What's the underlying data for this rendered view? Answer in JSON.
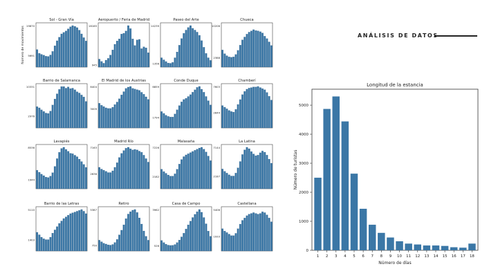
{
  "header": {
    "title": "ANÁLISIS DE DATOS"
  },
  "colors": {
    "bar": "#3b77a6",
    "bar_edge": "#2a5b82",
    "accent": "#222222"
  },
  "chart_data": [
    {
      "type": "bar",
      "title": "Longitud de la estancia",
      "xlabel": "Número de días",
      "ylabel": "Número de turistas",
      "categories": [
        "1",
        "2",
        "3",
        "4",
        "5",
        "6",
        "7",
        "8",
        "9",
        "10",
        "11",
        "12",
        "13",
        "14",
        "15",
        "16",
        "17",
        "18"
      ],
      "values": [
        2500,
        4870,
        5300,
        4440,
        2640,
        1430,
        880,
        600,
        440,
        310,
        230,
        200,
        165,
        165,
        150,
        105,
        90,
        230
      ],
      "ylim": [
        0,
        5550
      ],
      "yticks": [
        "0",
        "1000",
        "2000",
        "3000",
        "4000",
        "5000"
      ]
    },
    {
      "type": "bar",
      "ylabel": "Número de movimientos",
      "panels": [
        {
          "title": "Sol - Gran Vía",
          "ylim_labels": [
            "",
            "5691",
            "19870"
          ],
          "min": 0,
          "max": 19870,
          "mid": 5691,
          "values": [
            8400,
            6600,
            6100,
            5700,
            5200,
            5100,
            5800,
            7500,
            10200,
            12600,
            14300,
            15900,
            16600,
            17300,
            18300,
            19300,
            19870,
            19500,
            18900,
            17700,
            15900,
            14100,
            12500
          ]
        },
        {
          "title": "Aeropuerto / Feria de Madrid",
          "ylim_labels": [
            "",
            "945",
            "16185"
          ],
          "min": 0,
          "max": 16185,
          "mid": 945,
          "values": [
            3100,
            2200,
            1500,
            2700,
            3400,
            4700,
            6700,
            8900,
            10200,
            11000,
            12900,
            13200,
            14100,
            16185,
            15000,
            11000,
            8400,
            10600,
            10800,
            7200,
            7900,
            7500,
            5600
          ]
        },
        {
          "title": "Paseo del Arte",
          "ylim_labels": [
            "",
            "1356",
            "14239"
          ],
          "min": 0,
          "max": 14239,
          "mid": 1356,
          "values": [
            3200,
            2500,
            1900,
            1400,
            1300,
            1600,
            3200,
            5200,
            7500,
            9800,
            11600,
            12700,
            13600,
            14239,
            13300,
            12700,
            12000,
            10900,
            9100,
            6800,
            4700,
            3200,
            2300
          ]
        },
        {
          "title": "Chueca",
          "ylim_labels": [
            "",
            "2388",
            "10206"
          ],
          "min": 0,
          "max": 10206,
          "mid": 2388,
          "values": [
            4200,
            3300,
            2800,
            2500,
            2400,
            2500,
            3100,
            4100,
            5400,
            6700,
            7400,
            8100,
            8600,
            8900,
            9200,
            9000,
            8900,
            8700,
            8400,
            7600,
            7000,
            6200,
            5300
          ]
        },
        {
          "title": "Barrio de Salamanca",
          "ylim_labels": [
            "",
            "2976",
            "10331"
          ],
          "min": 0,
          "max": 10331,
          "mid": 2976,
          "values": [
            5300,
            5000,
            4500,
            4100,
            3700,
            3600,
            4200,
            5700,
            7200,
            8500,
            9600,
            10300,
            10300,
            9900,
            10200,
            9800,
            9900,
            9500,
            9000,
            8700,
            8200,
            7700,
            6600
          ]
        },
        {
          "title": "El Madrid de los Austrias",
          "ylim_labels": [
            "",
            "3009",
            "6404"
          ],
          "min": 0,
          "max": 6404,
          "mid": 3009,
          "values": [
            3800,
            3500,
            3300,
            3100,
            3000,
            3000,
            3200,
            3600,
            4000,
            4500,
            5100,
            5600,
            6100,
            6300,
            6400,
            6100,
            6000,
            5900,
            5800,
            5500,
            5200,
            4800,
            4400
          ]
        },
        {
          "title": "Conde Duque",
          "ylim_labels": [
            "",
            "1794",
            "6859"
          ],
          "min": 0,
          "max": 6859,
          "mid": 1794,
          "values": [
            2700,
            2400,
            2100,
            1900,
            1800,
            1800,
            2300,
            3000,
            3700,
            4300,
            4700,
            4900,
            5200,
            5500,
            5900,
            6300,
            6700,
            6859,
            6400,
            5900,
            5200,
            4500,
            3800
          ]
        },
        {
          "title": "Chamberí",
          "ylim_labels": [
            "",
            "2844",
            "7603"
          ],
          "min": 0,
          "max": 7603,
          "mid": 2844,
          "values": [
            4100,
            3800,
            3500,
            3200,
            3000,
            2900,
            3400,
            4300,
            5200,
            6100,
            6700,
            7100,
            7300,
            7400,
            7500,
            7500,
            7600,
            7400,
            7200,
            7000,
            6500,
            5800,
            5100
          ]
        },
        {
          "title": "Lavapiés",
          "ylim_labels": [
            "",
            "1944",
            "8536"
          ],
          "min": 0,
          "max": 8536,
          "mid": 1944,
          "values": [
            3800,
            3400,
            3000,
            2700,
            2400,
            2300,
            2600,
            3300,
            4600,
            6200,
            7500,
            8300,
            8536,
            8100,
            7700,
            7300,
            7200,
            6900,
            6600,
            6100,
            5600,
            5000,
            4400
          ]
        },
        {
          "title": "Madrid Río",
          "ylim_labels": [
            "",
            "2636",
            "7163"
          ],
          "min": 0,
          "max": 7163,
          "mid": 2636,
          "values": [
            3700,
            3400,
            3200,
            3000,
            2800,
            2800,
            3100,
            3700,
            4500,
            5400,
            6100,
            6600,
            7000,
            7163,
            6900,
            6700,
            6800,
            6700,
            6500,
            6300,
            5800,
            5200,
            4600
          ]
        },
        {
          "title": "Malasaña",
          "ylim_labels": [
            "",
            "2182",
            "7226"
          ],
          "min": 0,
          "max": 7226,
          "mid": 2182,
          "values": [
            3400,
            3000,
            2700,
            2400,
            2200,
            2200,
            2600,
            3400,
            4300,
            5100,
            5600,
            5900,
            6100,
            6300,
            6500,
            6700,
            6900,
            7100,
            7226,
            6900,
            6400,
            5700,
            4900
          ]
        },
        {
          "title": "La Latina",
          "ylim_labels": [
            "",
            "2187",
            "7144"
          ],
          "min": 0,
          "max": 7144,
          "mid": 2187,
          "values": [
            3400,
            3000,
            2700,
            2400,
            2200,
            2200,
            2700,
            3600,
            4700,
            5900,
            6700,
            7144,
            6900,
            6400,
            6000,
            5700,
            5800,
            6200,
            6500,
            6300,
            5800,
            5100,
            4400
          ]
        },
        {
          "title": "Barrio de las Letras",
          "ylim_labels": [
            "",
            "1403",
            "5110"
          ],
          "min": 0,
          "max": 5110,
          "mid": 1403,
          "values": [
            2300,
            2000,
            1700,
            1500,
            1400,
            1400,
            1700,
            2200,
            2600,
            3000,
            3400,
            3700,
            4000,
            4200,
            4400,
            4600,
            4700,
            4800,
            4900,
            5000,
            5110,
            4900,
            4600
          ]
        },
        {
          "title": "Retiro",
          "ylim_labels": [
            "",
            "750",
            "5387"
          ],
          "min": 0,
          "max": 5387,
          "mid": 750,
          "values": [
            1400,
            1200,
            1000,
            900,
            800,
            760,
            850,
            1100,
            1500,
            2100,
            2700,
            3400,
            4200,
            4800,
            5100,
            5300,
            5387,
            5000,
            4300,
            3500,
            2600,
            1900,
            1400
          ]
        },
        {
          "title": "Casa de Campo",
          "ylim_labels": [
            "",
            "526",
            "3962"
          ],
          "min": 0,
          "max": 3962,
          "mid": 526,
          "values": [
            1000,
            800,
            650,
            560,
            530,
            540,
            620,
            800,
            1050,
            1350,
            1700,
            2100,
            2500,
            2850,
            3200,
            3500,
            3750,
            3962,
            3700,
            3200,
            2600,
            1900,
            1400
          ]
        },
        {
          "title": "Castellana",
          "ylim_labels": [
            "",
            "1933",
            "5406"
          ],
          "min": 0,
          "max": 5406,
          "mid": 1933,
          "values": [
            2900,
            2600,
            2400,
            2200,
            2000,
            2000,
            2300,
            2900,
            3500,
            4000,
            4300,
            4600,
            4800,
            4900,
            5000,
            4900,
            4800,
            4900,
            5100,
            5000,
            4700,
            4300,
            3800
          ]
        }
      ]
    }
  ]
}
